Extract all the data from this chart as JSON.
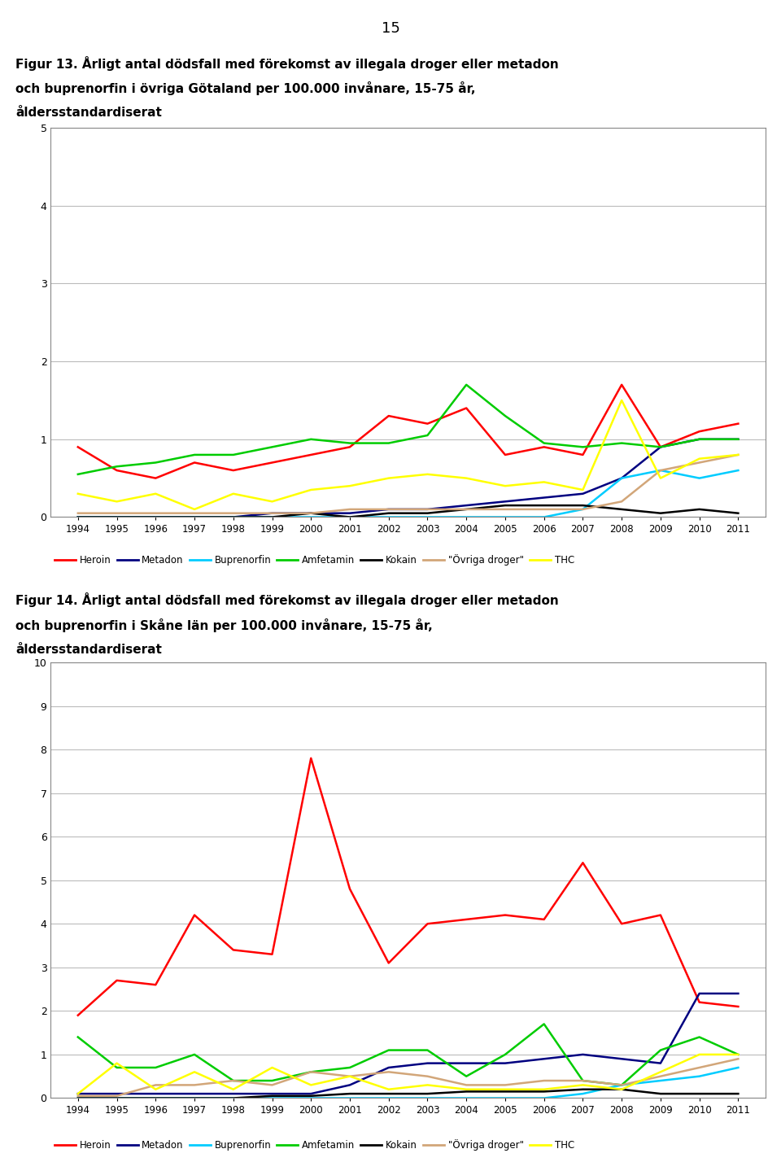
{
  "page_number": "15",
  "fig13_title_line1": "Figur 13. Årligt antal dödsfall med förekomst av illegala droger eller metadon",
  "fig13_title_line2": "och buprenorfin i övriga Götaland per 100.000 invånare, 15-75 år,",
  "fig13_title_line3": "åldersstandardiserat",
  "fig14_title_line1": "Figur 14. Årligt antal dödsfall med förekomst av illegala droger eller metadon",
  "fig14_title_line2": "och buprenorfin i Skåne län per 100.000 invånare, 15-75 år,",
  "fig14_title_line3": "åldersstandardiserat",
  "years": [
    1994,
    1995,
    1996,
    1997,
    1998,
    1999,
    2000,
    2001,
    2002,
    2003,
    2004,
    2005,
    2006,
    2007,
    2008,
    2009,
    2010,
    2011
  ],
  "legend_labels": [
    "Heroin",
    "Metadon",
    "Buprenorfin",
    "Amfetamin",
    "Kokain",
    "\"Övriga droger\"",
    "THC"
  ],
  "colors": {
    "Heroin": "#FF0000",
    "Metadon": "#000080",
    "Buprenorfin": "#00CCFF",
    "Amfetamin": "#00CC00",
    "Kokain": "#000000",
    "Ovriga": "#D2A679",
    "THC": "#FFFF00"
  },
  "fig13": {
    "ylim": [
      0,
      5
    ],
    "yticks": [
      0,
      1,
      2,
      3,
      4,
      5
    ],
    "Heroin": [
      0.9,
      0.6,
      0.5,
      0.7,
      0.6,
      0.7,
      0.8,
      0.9,
      1.3,
      1.2,
      1.4,
      0.8,
      0.9,
      0.8,
      1.7,
      0.9,
      1.1,
      1.2
    ],
    "Metadon": [
      0.0,
      0.0,
      0.0,
      0.0,
      0.0,
      0.05,
      0.05,
      0.05,
      0.1,
      0.1,
      0.15,
      0.2,
      0.25,
      0.3,
      0.5,
      0.9,
      1.0,
      1.0
    ],
    "Buprenorfin": [
      0.0,
      0.0,
      0.0,
      0.0,
      0.0,
      0.0,
      0.0,
      0.0,
      0.0,
      0.0,
      0.0,
      0.0,
      0.0,
      0.1,
      0.5,
      0.6,
      0.5,
      0.6
    ],
    "Amfetamin": [
      0.55,
      0.65,
      0.7,
      0.8,
      0.8,
      0.9,
      1.0,
      0.95,
      0.95,
      1.05,
      1.7,
      1.3,
      0.95,
      0.9,
      0.95,
      0.9,
      1.0,
      1.0
    ],
    "Kokain": [
      0.0,
      0.0,
      0.0,
      0.0,
      0.0,
      0.0,
      0.05,
      0.0,
      0.05,
      0.05,
      0.1,
      0.15,
      0.15,
      0.15,
      0.1,
      0.05,
      0.1,
      0.05
    ],
    "Ovriga": [
      0.05,
      0.05,
      0.05,
      0.05,
      0.05,
      0.05,
      0.05,
      0.1,
      0.1,
      0.1,
      0.1,
      0.1,
      0.1,
      0.1,
      0.2,
      0.6,
      0.7,
      0.8
    ],
    "THC": [
      0.3,
      0.2,
      0.3,
      0.1,
      0.3,
      0.2,
      0.35,
      0.4,
      0.5,
      0.55,
      0.5,
      0.4,
      0.45,
      0.35,
      1.5,
      0.5,
      0.75,
      0.8
    ]
  },
  "fig14": {
    "ylim": [
      0,
      10
    ],
    "yticks": [
      0,
      1,
      2,
      3,
      4,
      5,
      6,
      7,
      8,
      9,
      10
    ],
    "Heroin": [
      1.9,
      2.7,
      2.6,
      4.2,
      3.4,
      3.3,
      7.8,
      4.8,
      3.1,
      4.0,
      4.1,
      4.2,
      4.1,
      5.4,
      4.0,
      4.2,
      2.2,
      2.1
    ],
    "Metadon": [
      0.1,
      0.1,
      0.1,
      0.1,
      0.1,
      0.1,
      0.1,
      0.3,
      0.7,
      0.8,
      0.8,
      0.8,
      0.9,
      1.0,
      0.9,
      0.8,
      2.4,
      2.4
    ],
    "Buprenorfin": [
      0.0,
      0.0,
      0.0,
      0.0,
      0.0,
      0.0,
      0.0,
      0.0,
      0.0,
      0.0,
      0.0,
      0.0,
      0.0,
      0.1,
      0.3,
      0.4,
      0.5,
      0.7
    ],
    "Amfetamin": [
      1.4,
      0.7,
      0.7,
      1.0,
      0.4,
      0.4,
      0.6,
      0.7,
      1.1,
      1.1,
      0.5,
      1.0,
      1.7,
      0.4,
      0.3,
      1.1,
      1.4,
      1.0
    ],
    "Kokain": [
      0.0,
      0.0,
      0.0,
      0.0,
      0.0,
      0.05,
      0.05,
      0.1,
      0.1,
      0.1,
      0.15,
      0.15,
      0.15,
      0.2,
      0.2,
      0.1,
      0.1,
      0.1
    ],
    "Ovriga": [
      0.05,
      0.05,
      0.3,
      0.3,
      0.4,
      0.3,
      0.6,
      0.5,
      0.6,
      0.5,
      0.3,
      0.3,
      0.4,
      0.4,
      0.3,
      0.5,
      0.7,
      0.9
    ],
    "THC": [
      0.1,
      0.8,
      0.2,
      0.6,
      0.2,
      0.7,
      0.3,
      0.5,
      0.2,
      0.3,
      0.2,
      0.2,
      0.2,
      0.3,
      0.2,
      0.6,
      1.0,
      1.0
    ]
  }
}
